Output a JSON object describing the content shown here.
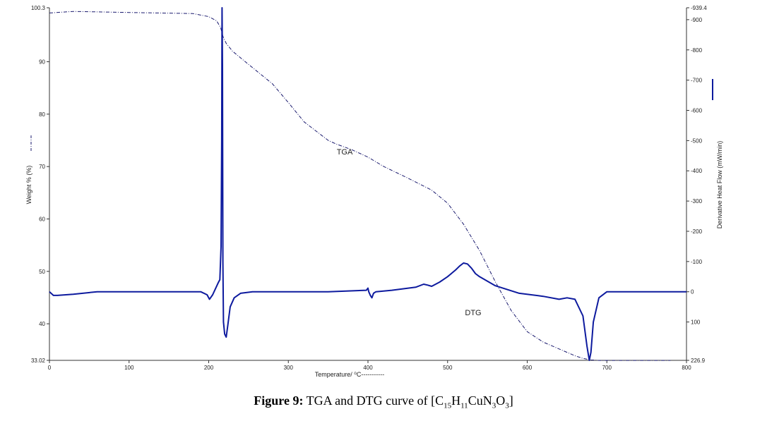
{
  "chart_data": {
    "type": "line",
    "xlabel": "Temperature/ ⁰C-----------",
    "y_left_label": "Weight % (%)",
    "y_right_label": "Derivative Heat Flow (mW/min)",
    "xlim": [
      0,
      800
    ],
    "y_left_lim": [
      33.02,
      100.3
    ],
    "y_right_lim": [
      226.9,
      -939.4
    ],
    "x_ticks": [
      "0",
      "100",
      "200",
      "300",
      "400",
      "500",
      "600",
      "700",
      "800"
    ],
    "y_left_ticks": [
      "100.3",
      "90",
      "80",
      "70",
      "60",
      "50",
      "40",
      "33.02"
    ],
    "y_right_ticks": [
      "-939.4",
      "-900",
      "-800",
      "-700",
      "-600",
      "-500",
      "-400",
      "-300",
      "-200",
      "-100",
      "0",
      "100",
      "226.9"
    ],
    "series": [
      {
        "name": "TGA",
        "axis": "left",
        "style": "dash-dot",
        "color": "#1a1a6e",
        "x": [
          0,
          30,
          100,
          180,
          200,
          210,
          215,
          218,
          222,
          230,
          250,
          280,
          300,
          320,
          350,
          360,
          380,
          400,
          420,
          450,
          480,
          500,
          520,
          540,
          560,
          580,
          600,
          620,
          640,
          660,
          670,
          680,
          690,
          700,
          720,
          750,
          780
        ],
        "y": [
          99.3,
          99.6,
          99.4,
          99.2,
          98.6,
          97.8,
          96.5,
          94.8,
          93.5,
          92.0,
          89.5,
          85.8,
          82.2,
          78.5,
          75.0,
          74.3,
          73.2,
          71.8,
          70.0,
          67.8,
          65.5,
          63.0,
          59.0,
          54.0,
          48.0,
          42.5,
          38.5,
          36.5,
          35.2,
          33.9,
          33.4,
          33.1,
          33.0,
          33.0,
          33.0,
          33.0,
          33.0
        ]
      },
      {
        "name": "DTG",
        "axis": "right",
        "style": "solid",
        "color": "#0d1a9e",
        "x": [
          0,
          5,
          10,
          30,
          60,
          100,
          150,
          190,
          198,
          201,
          205,
          212,
          214,
          215.5,
          216.3,
          216.8,
          217.3,
          217.8,
          218.5,
          220,
          222,
          224,
          227,
          232,
          240,
          255,
          300,
          350,
          398,
          400,
          401,
          403,
          405,
          407,
          410,
          430,
          460,
          470,
          475,
          480,
          490,
          500,
          510,
          515,
          520,
          525,
          530,
          535,
          540,
          560,
          590,
          620,
          640,
          650,
          660,
          670,
          675,
          678,
          680,
          683,
          690,
          700,
          800
        ],
        "y": [
          0,
          12,
          12,
          8,
          0,
          0,
          0,
          0,
          10,
          25,
          10,
          -30,
          -40,
          -150,
          -500,
          -939.4,
          -750,
          -100,
          100,
          140,
          150,
          110,
          50,
          20,
          5,
          0,
          0,
          0,
          -5,
          -12,
          0,
          12,
          20,
          5,
          0,
          -5,
          -15,
          -25,
          -22,
          -18,
          -32,
          -50,
          -72,
          -85,
          -95,
          -92,
          -78,
          -60,
          -50,
          -20,
          5,
          15,
          25,
          20,
          25,
          80,
          180,
          226.9,
          200,
          100,
          20,
          0,
          0
        ]
      }
    ],
    "annotations": [
      "TGA",
      "DTG"
    ],
    "caption": {
      "prefix": "Figure 9:",
      "text": "TGA and DTG curve of [C",
      "formula_parts": [
        "15",
        "H",
        "11",
        "CuN",
        "3",
        "O",
        "3",
        "]"
      ]
    }
  }
}
